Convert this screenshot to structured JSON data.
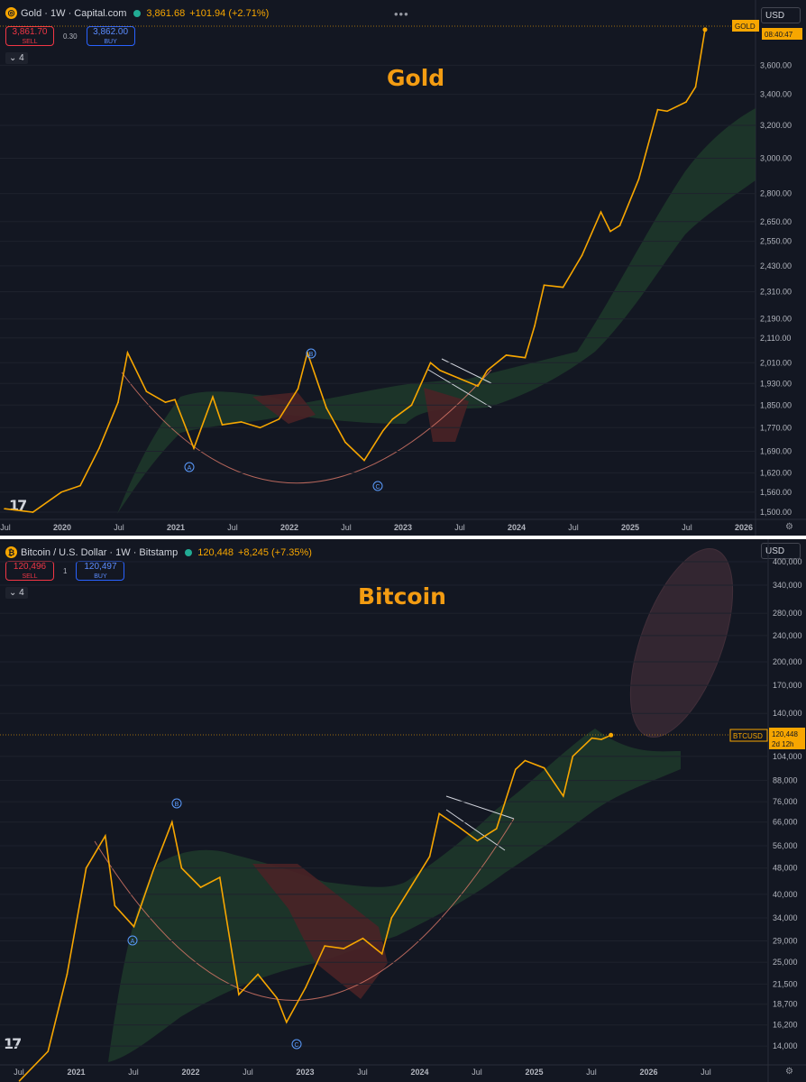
{
  "gold": {
    "symbol_icon": "gold-coin-icon",
    "header_title": "Gold · 1W · Capital.com",
    "price": "3,861.68",
    "change": "+101.94 (+2.71%)",
    "sell_price": "3,861.70",
    "sell_label": "SELL",
    "spread": "0.30",
    "buy_price": "3,862.00",
    "buy_label": "BUY",
    "indicators_toggle": "⌄ 4",
    "currency": "USD",
    "price_tag": "GOLD",
    "countdown": "08:40:47",
    "title": "Gold",
    "colors": {
      "line": "#f7a600",
      "arc": "#e07a6a",
      "cloud_green": "#1f3a2a",
      "cloud_red": "#4a2226"
    }
  },
  "bitcoin": {
    "symbol_icon": "bitcoin-icon",
    "header_title": "Bitcoin / U.S. Dollar · 1W · Bitstamp",
    "price": "120,448",
    "change": "+8,245 (+7.35%)",
    "sell_price": "120,496",
    "sell_label": "SELL",
    "spread": "1",
    "buy_price": "120,497",
    "buy_label": "BUY",
    "indicators_toggle": "⌄ 4",
    "currency": "USD",
    "price_tag": "BTCUSD",
    "price_tag_value": "120,448",
    "countdown": "2d 12h",
    "title": "Bitcoin",
    "colors": {
      "line": "#f7a600",
      "arc": "#e07a6a",
      "ellipse": "#5a3a44"
    }
  },
  "chart_data": [
    {
      "type": "line",
      "title": "Gold",
      "scale": "log",
      "ylim": [
        1500,
        3900
      ],
      "y_ticks": [
        "3,600.00",
        "3,400.00",
        "3,200.00",
        "3,000.00",
        "2,800.00",
        "2,650.00",
        "2,550.00",
        "2,430.00",
        "2,310.00",
        "2,190.00",
        "2,110.00",
        "2,010.00",
        "1,930.00",
        "1,850.00",
        "1,770.00",
        "1,690.00",
        "1,620.00",
        "1,560.00",
        "1,500.00"
      ],
      "x_ticks": [
        "Jul",
        "2020",
        "Jul",
        "2021",
        "Jul",
        "2022",
        "Jul",
        "2023",
        "Jul",
        "2024",
        "Jul",
        "2025",
        "Jul",
        "2026"
      ],
      "annotations": [
        "A",
        "B",
        "C"
      ],
      "series": [
        {
          "x": [
            "2019-07",
            "2019-10",
            "2020-01",
            "2020-03",
            "2020-05",
            "2020-07",
            "2020-08",
            "2020-10",
            "2020-12",
            "2021-01",
            "2021-03",
            "2021-05",
            "2021-06",
            "2021-08",
            "2021-10",
            "2021-12",
            "2022-02",
            "2022-03",
            "2022-05",
            "2022-07",
            "2022-09",
            "2022-11",
            "2022-12",
            "2023-02",
            "2023-04",
            "2023-05",
            "2023-07",
            "2023-09",
            "2023-10",
            "2023-12",
            "2024-02",
            "2024-03",
            "2024-04",
            "2024-06",
            "2024-08",
            "2024-10",
            "2024-11",
            "2024-12",
            "2025-02",
            "2025-04",
            "2025-05",
            "2025-07",
            "2025-08",
            "2025-09"
          ],
          "y": [
            1510,
            1500,
            1560,
            1580,
            1700,
            1860,
            2050,
            1900,
            1860,
            1870,
            1700,
            1880,
            1780,
            1790,
            1770,
            1800,
            1910,
            2050,
            1840,
            1720,
            1660,
            1760,
            1800,
            1850,
            2010,
            1980,
            1950,
            1920,
            1980,
            2040,
            2030,
            2160,
            2340,
            2330,
            2480,
            2700,
            2600,
            2630,
            2880,
            3300,
            3290,
            3350,
            3450,
            3860
          ]
        }
      ]
    },
    {
      "type": "line",
      "title": "Bitcoin",
      "scale": "log",
      "ylim": [
        13000,
        400000
      ],
      "y_ticks": [
        "400,000",
        "340,000",
        "280,000",
        "240,000",
        "200,000",
        "170,000",
        "140,000",
        "104,000",
        "88,000",
        "76,000",
        "66,000",
        "56,000",
        "48,000",
        "40,000",
        "34,000",
        "29,000",
        "25,000",
        "21,500",
        "18,700",
        "16,200",
        "14,000"
      ],
      "x_ticks": [
        "Jul",
        "2021",
        "Jul",
        "2022",
        "Jul",
        "2023",
        "Jul",
        "2024",
        "Jul",
        "2025",
        "Jul",
        "2026",
        "Jul"
      ],
      "annotations": [
        "A",
        "B",
        "C"
      ],
      "series": [
        {
          "x": [
            "2020-07",
            "2020-10",
            "2020-12",
            "2021-02",
            "2021-04",
            "2021-05",
            "2021-07",
            "2021-09",
            "2021-11",
            "2021-12",
            "2022-02",
            "2022-04",
            "2022-05",
            "2022-06",
            "2022-08",
            "2022-10",
            "2022-11",
            "2023-01",
            "2023-03",
            "2023-05",
            "2023-07",
            "2023-09",
            "2023-10",
            "2023-12",
            "2024-02",
            "2024-03",
            "2024-05",
            "2024-07",
            "2024-09",
            "2024-11",
            "2024-12",
            "2025-02",
            "2025-04",
            "2025-05",
            "2025-07",
            "2025-08",
            "2025-09"
          ],
          "y": [
            11000,
            13500,
            23000,
            48000,
            60000,
            37000,
            32000,
            47000,
            66000,
            48000,
            42000,
            45000,
            30000,
            20000,
            23000,
            19500,
            16500,
            21000,
            28000,
            27500,
            29500,
            26500,
            34000,
            42000,
            52000,
            70000,
            64000,
            58000,
            63000,
            95000,
            101000,
            96000,
            79000,
            104000,
            118000,
            117000,
            120448
          ]
        }
      ]
    }
  ]
}
